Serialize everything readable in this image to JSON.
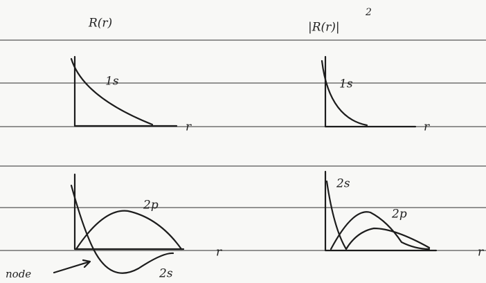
{
  "headers": {
    "left": "R(r)",
    "right": "|R(r)|",
    "right_exponent": "2"
  },
  "panels": [
    {
      "curve_labels": [
        "1s"
      ],
      "axis_label": "r"
    },
    {
      "curve_labels": [
        "1s"
      ],
      "axis_label": "r"
    },
    {
      "curve_labels": [
        "2p",
        "2s"
      ],
      "axis_label": "r"
    },
    {
      "curve_labels": [
        "2s",
        "2p"
      ],
      "axis_label": "r"
    }
  ],
  "annotation": "node"
}
